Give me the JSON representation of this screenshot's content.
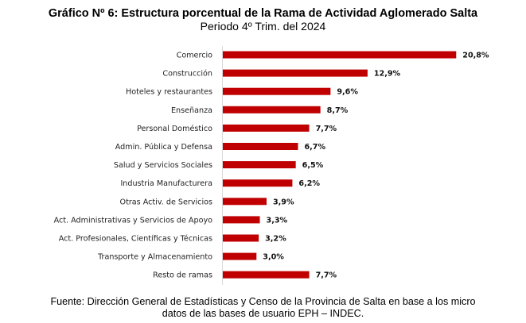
{
  "chart_data": {
    "type": "bar",
    "orientation": "horizontal",
    "title": "Gráfico Nº 6: Estructura porcentual de la Rama de Actividad Aglomerado Salta",
    "subtitle": "Periodo 4º Trim. del 2024",
    "xlabel": "",
    "ylabel": "",
    "xlim": [
      0,
      22
    ],
    "grid": false,
    "legend": "none",
    "bar_color": "#C00000",
    "categories": [
      "Comercio",
      "Construcción",
      "Hoteles y restaurantes",
      "Enseñanza",
      "Personal Doméstico",
      "Admin. Pública y Defensa",
      "Salud y Servicios Sociales",
      "Industria Manufacturera",
      "Otras Activ. de Servicios",
      "Act. Administrativas y Servicios de Apoyo",
      "Act. Profesionales, Científicas y Técnicas",
      "Transporte y Almacenamiento",
      "Resto de ramas"
    ],
    "values": [
      20.8,
      12.9,
      9.6,
      8.7,
      7.7,
      6.7,
      6.5,
      6.2,
      3.9,
      3.3,
      3.2,
      3.0,
      7.7
    ],
    "data_labels": [
      "20,8%",
      "12,9%",
      "9,6%",
      "8,7%",
      "7,7%",
      "6,7%",
      "6,5%",
      "6,2%",
      "3,9%",
      "3,3%",
      "3,2%",
      "3,0%",
      "7,7%"
    ]
  },
  "source": {
    "line1": "Fuente: Dirección General de Estadísticas y Censo de la Provincia de Salta en base a los micro",
    "line2": "datos de las bases de usuario EPH – INDEC."
  }
}
